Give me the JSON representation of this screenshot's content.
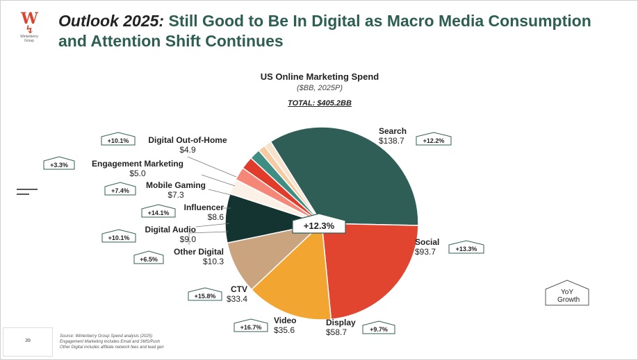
{
  "logo": {
    "mark": "W",
    "name": "Winterberry Group"
  },
  "header": {
    "title_lead": "Outlook 2025:",
    "title_rest": " Still Good to Be In Digital as Macro Media Consumption and Attention Shift Continues"
  },
  "chart_data": {
    "type": "pie",
    "title": "US Online Marketing Spend",
    "subtitle": "($BB, 2025P)",
    "total": "TOTAL: $405.2BB",
    "center_label": "+12.3%",
    "legend_note": "YoY Growth",
    "unit": "$BB",
    "categories": [
      "Search",
      "Social",
      "Display",
      "Video",
      "CTV",
      "Other Digital",
      "Digital Audio",
      "Influencer",
      "Mobile Gaming",
      "Engagement Marketing",
      "Digital Out-of-Home"
    ],
    "values": [
      138.7,
      93.7,
      58.7,
      35.6,
      33.4,
      10.3,
      9.0,
      8.6,
      7.3,
      5.0,
      4.9
    ],
    "value_labels": [
      "$138.7",
      "$93.7",
      "$58.7",
      "$35.6",
      "$33.4",
      "$10.3",
      "$9.0",
      "$8.6",
      "$7.3",
      "$5.0",
      "$4.9"
    ],
    "yoy_growth": [
      "+12.2%",
      "+13.3%",
      "+9.7%",
      "+16.7%",
      "+15.8%",
      "+6.5%",
      "+10.1%",
      "+14.1%",
      "+7.4%",
      "+3.3%",
      "+10.1%"
    ],
    "colors": [
      "#2f5e57",
      "#e2452f",
      "#f3a531",
      "#c9a47e",
      "#143432",
      "#fbf1e7",
      "#f58778",
      "#e03b2b",
      "#3f8e84",
      "#f6cba1",
      "#f7e2cd"
    ]
  },
  "footer": {
    "page_number": "39",
    "source_notes": [
      "Source: Winterberry Group Spend analysis (2025)",
      "Engagement Marketing includes Email and SMS/Push",
      "Other Digital includes affiliate network fees and lead gen"
    ]
  }
}
